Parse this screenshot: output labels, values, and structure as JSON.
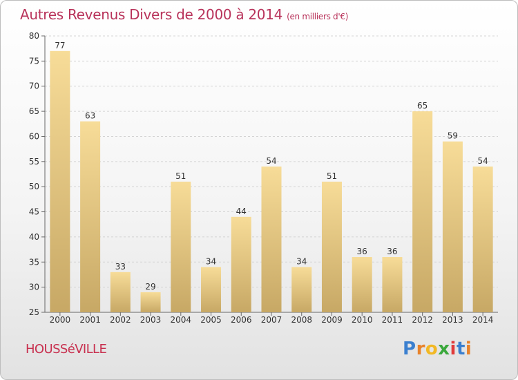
{
  "title": "Autres Revenus Divers de 2000 à 2014",
  "title_unit": "(en milliers d'€)",
  "commune": "HOUSSéVILLE",
  "logo": {
    "letters": [
      "P",
      "r",
      "o",
      "x",
      "i",
      "t",
      "i"
    ],
    "colors": [
      "#3a7fcf",
      "#e8822a",
      "#f2b824",
      "#3aa83c",
      "#e03a3a",
      "#3a7fcf",
      "#e8822a"
    ]
  },
  "colors": {
    "bar_light": "#f7dc98",
    "bar_dark": "#c7a865",
    "title": "#b8325a"
  },
  "chart_data": {
    "type": "bar",
    "categories": [
      "2000",
      "2001",
      "2002",
      "2003",
      "2004",
      "2005",
      "2006",
      "2007",
      "2008",
      "2009",
      "2010",
      "2011",
      "2012",
      "2013",
      "2014"
    ],
    "values": [
      77,
      63,
      33,
      29,
      51,
      34,
      44,
      54,
      34,
      51,
      36,
      36,
      65,
      59,
      54
    ],
    "ylim": [
      25,
      80
    ],
    "yticks": [
      25,
      30,
      35,
      40,
      45,
      50,
      55,
      60,
      65,
      70,
      75,
      80
    ],
    "grid": true
  }
}
